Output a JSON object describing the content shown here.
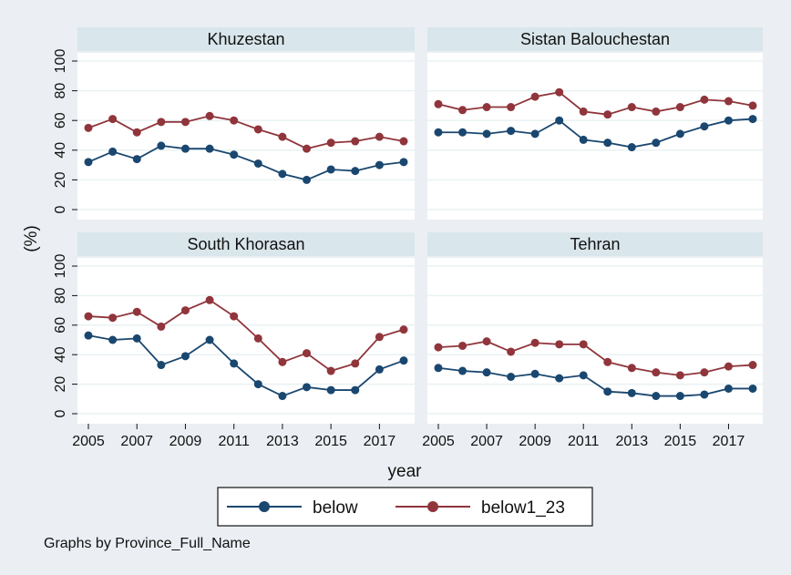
{
  "chart_data": {
    "type": "line",
    "xlabel": "year",
    "ylabel": "(%)",
    "ylim": [
      0,
      100
    ],
    "yticks": [
      0,
      20,
      40,
      60,
      80,
      100
    ],
    "xlim": [
      2005,
      2018
    ],
    "xticks": [
      2005,
      2007,
      2009,
      2011,
      2013,
      2015,
      2017
    ],
    "grid": true,
    "legend_position": "bottom",
    "note": "Graphs by  Province_Full_Name",
    "series_meta": [
      {
        "name": "below",
        "color": "#1a476f"
      },
      {
        "name": "below1_23",
        "color": "#90353b"
      }
    ],
    "panels": [
      {
        "title": "Khuzestan",
        "x": [
          2005,
          2006,
          2007,
          2008,
          2009,
          2010,
          2011,
          2012,
          2013,
          2014,
          2015,
          2016,
          2017,
          2018
        ],
        "series": [
          {
            "name": "below",
            "values": [
              32,
              39,
              34,
              43,
              41,
              41,
              37,
              31,
              24,
              20,
              27,
              26,
              30,
              32
            ]
          },
          {
            "name": "below1_23",
            "values": [
              55,
              61,
              52,
              59,
              59,
              63,
              60,
              54,
              49,
              41,
              45,
              46,
              49,
              46
            ]
          }
        ]
      },
      {
        "title": "Sistan Balouchestan",
        "x": [
          2005,
          2006,
          2007,
          2008,
          2009,
          2010,
          2011,
          2012,
          2013,
          2014,
          2015,
          2016,
          2017,
          2018
        ],
        "series": [
          {
            "name": "below",
            "values": [
              52,
              52,
              51,
              53,
              51,
              60,
              47,
              45,
              42,
              45,
              51,
              56,
              60,
              61
            ]
          },
          {
            "name": "below1_23",
            "values": [
              71,
              67,
              69,
              69,
              76,
              79,
              66,
              64,
              69,
              66,
              69,
              74,
              73,
              70
            ]
          }
        ]
      },
      {
        "title": "South Khorasan",
        "x": [
          2005,
          2006,
          2007,
          2008,
          2009,
          2010,
          2011,
          2012,
          2013,
          2014,
          2015,
          2016,
          2017,
          2018
        ],
        "series": [
          {
            "name": "below",
            "values": [
              53,
              50,
              51,
              33,
              39,
              50,
              34,
              20,
              12,
              18,
              16,
              16,
              30,
              36
            ]
          },
          {
            "name": "below1_23",
            "values": [
              66,
              65,
              69,
              59,
              70,
              77,
              66,
              51,
              35,
              41,
              29,
              34,
              52,
              57
            ]
          }
        ]
      },
      {
        "title": "Tehran",
        "x": [
          2005,
          2006,
          2007,
          2008,
          2009,
          2010,
          2011,
          2012,
          2013,
          2014,
          2015,
          2016,
          2017,
          2018
        ],
        "series": [
          {
            "name": "below",
            "values": [
              31,
              29,
              28,
              25,
              27,
              24,
              26,
              15,
              14,
              12,
              12,
              13,
              17,
              17
            ]
          },
          {
            "name": "below1_23",
            "values": [
              45,
              46,
              49,
              42,
              48,
              47,
              47,
              35,
              31,
              28,
              26,
              28,
              32,
              33
            ]
          }
        ]
      }
    ]
  }
}
